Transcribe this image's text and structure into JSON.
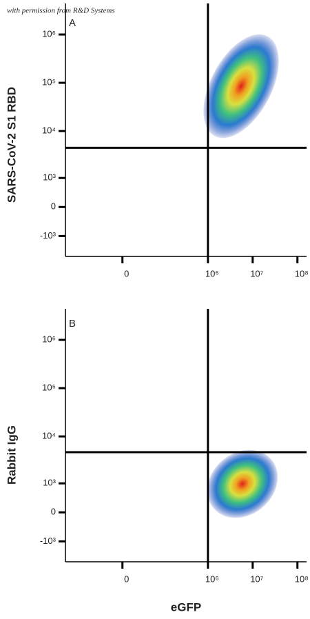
{
  "watermark": "with permission from R&D Systems",
  "chart_data": [
    {
      "type": "density",
      "panel_label": "A",
      "y_label": "SARS-CoV-2 S1 RBD",
      "xlim": [
        -230000,
        160000000
      ],
      "ylim": [
        -2800,
        4400000
      ],
      "xticks": [
        0,
        {
          "value": 1000000,
          "label": "10⁶"
        },
        {
          "value": 10000000,
          "label": "10⁷"
        },
        {
          "value": 100000000,
          "label": "10⁸"
        }
      ],
      "yticks": [
        {
          "value": 1000000,
          "label": "10⁶"
        },
        {
          "value": 100000,
          "label": "10⁵"
        },
        {
          "value": 10000,
          "label": "10⁴"
        },
        {
          "value": 1000,
          "label": "10³"
        },
        0,
        {
          "value": -1000,
          "label": "-10³"
        }
      ],
      "quadrant": {
        "x": 1000000,
        "y": 4500
      }
    },
    {
      "type": "density",
      "panel_label": "B",
      "y_label": "Rabbit IgG",
      "x_label": "eGFP",
      "xlim": [
        -230000,
        160000000
      ],
      "ylim": [
        -2800,
        4400000
      ],
      "xticks": [
        0,
        {
          "value": 1000000,
          "label": "10⁶"
        },
        {
          "value": 10000000,
          "label": "10⁷"
        },
        {
          "value": 100000000,
          "label": "10⁸"
        }
      ],
      "yticks": [
        {
          "value": 1000000,
          "label": "10⁶"
        },
        {
          "value": 100000,
          "label": "10⁵"
        },
        {
          "value": 10000,
          "label": "10⁴"
        },
        {
          "value": 1000,
          "label": "10³"
        },
        0,
        {
          "value": -1000,
          "label": "-10³"
        }
      ],
      "quadrant": {
        "x": 1000000,
        "y": 4700
      }
    }
  ]
}
